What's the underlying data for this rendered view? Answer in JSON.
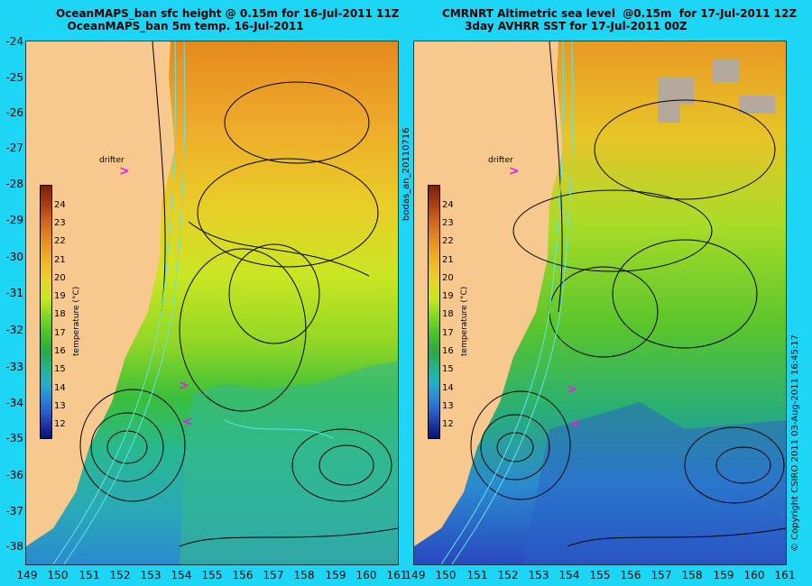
{
  "left_title": {
    "line1": "OceanMAPS_ban sfc height @ 0.15m for 16-Jul-2011 11Z",
    "line2": "OceanMAPS_ban 5m temp. 16-Jul-2011"
  },
  "right_title": {
    "line1": "CMRNRT Altimetric sea level  @0.15m  for 17-Jul-2011 12Z",
    "line2": "3day AVHRR SST for 17-Jul-2011 00Z"
  },
  "y_ticks": [
    "-24",
    "-25",
    "-26",
    "-27",
    "-28",
    "-29",
    "-30",
    "-31",
    "-32",
    "-33",
    "-34",
    "-35",
    "-36",
    "-37",
    "-38"
  ],
  "x_ticks": [
    "149",
    "150",
    "151",
    "152",
    "153",
    "154",
    "155",
    "156",
    "157",
    "158",
    "159",
    "160",
    "161"
  ],
  "colorbar": {
    "ticks": [
      "24",
      "23",
      "22",
      "21",
      "20",
      "19",
      "18",
      "17",
      "16",
      "15",
      "14",
      "13",
      "12"
    ],
    "title": "temperature (°C)"
  },
  "drifter_label": "drifter",
  "middle_vertical_text": "bodas_an_20110716",
  "right_vertical_text": "© Copyright CSIRO 2011  03-Aug-2011 16:45:17",
  "colors": {
    "background": "#1dd5f5",
    "land": "#f8c98e",
    "drifter": "#e020e0",
    "contour_black": "#000000",
    "contour_cyan": "#5ce6e6"
  }
}
